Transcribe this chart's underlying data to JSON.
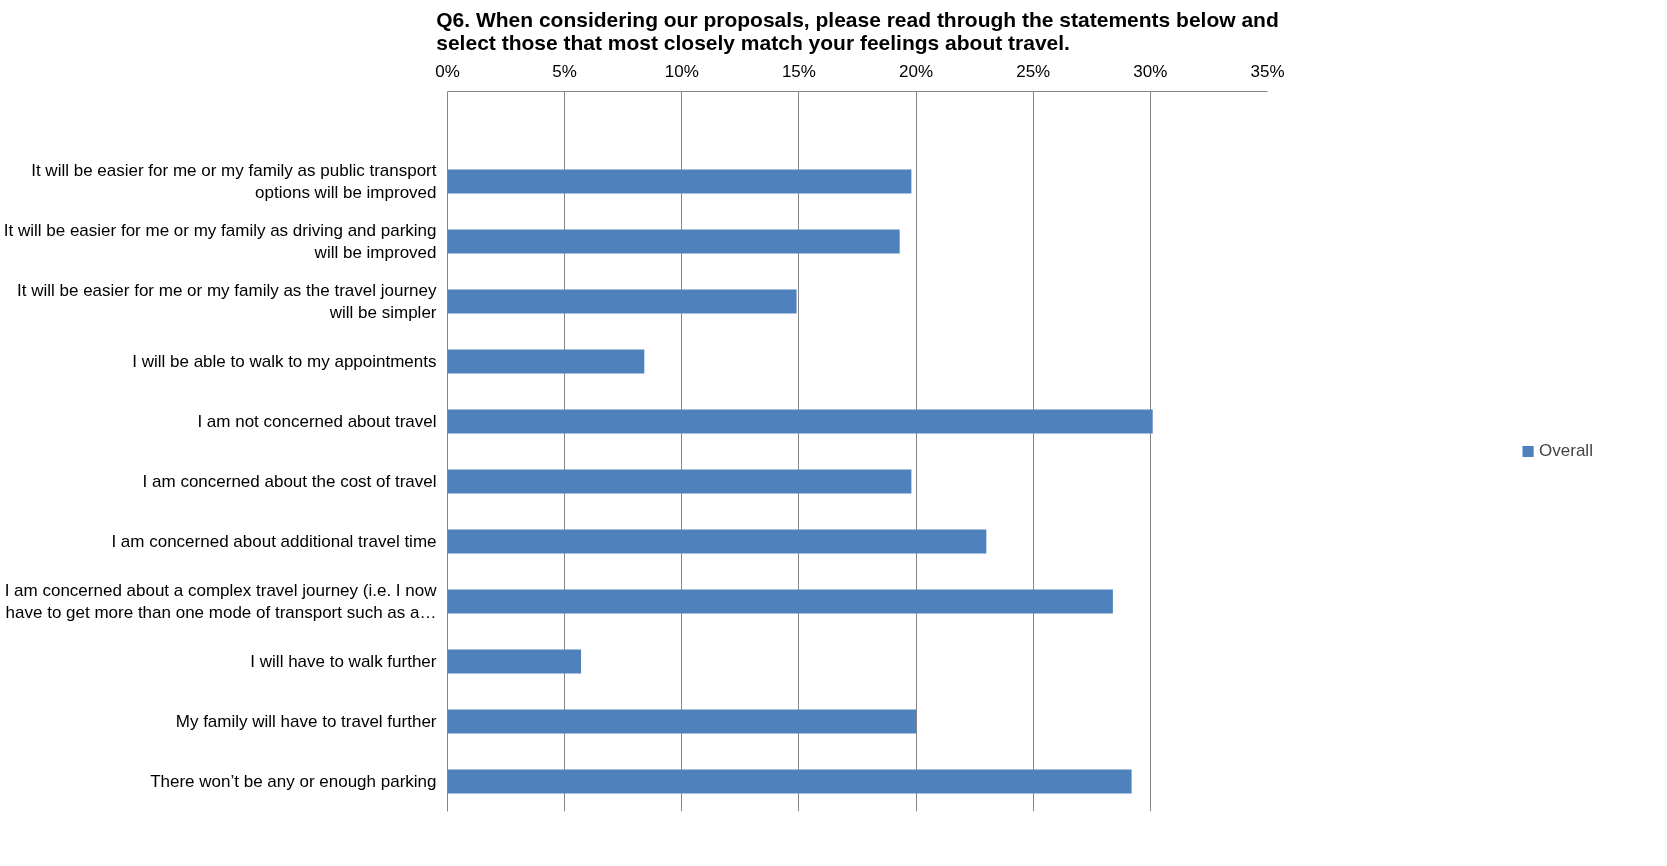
{
  "chart_data": {
    "type": "bar",
    "orientation": "horizontal",
    "title": "Q6. When considering our proposals, please read through the statements below and select those that most closely match your feelings about travel.",
    "categories": [
      null,
      "It will be easier for me or my family as public transport options will be improved",
      "It will be easier for me or my family as driving and parking will be improved",
      "It will be easier for me or my family as the travel journey will be simpler",
      "I will be able to walk to my appointments",
      "I am not concerned about travel",
      "I am concerned about the cost of travel",
      "I am concerned about additional travel time",
      "I am concerned about a complex travel journey (i.e. I now have to get more than one mode of transport such as a…",
      "I will have to walk further",
      "My family will have to travel further",
      "There won’t be any or enough parking"
    ],
    "series": [
      {
        "name": "Overall",
        "color": "#4f81bd",
        "values": [
          null,
          19.8,
          19.3,
          14.9,
          8.4,
          30.1,
          19.8,
          23.0,
          28.4,
          5.7,
          20.0,
          29.2
        ]
      }
    ],
    "xlim": [
      0,
      35
    ],
    "xticks": [
      {
        "value": 0,
        "label": "0%"
      },
      {
        "value": 5,
        "label": "5%"
      },
      {
        "value": 10,
        "label": "10%"
      },
      {
        "value": 15,
        "label": "15%"
      },
      {
        "value": 20,
        "label": "20%"
      },
      {
        "value": 25,
        "label": "25%"
      },
      {
        "value": 30,
        "label": "30%"
      },
      {
        "value": 35,
        "label": "35%"
      }
    ],
    "grid": "x",
    "legend": "right"
  }
}
